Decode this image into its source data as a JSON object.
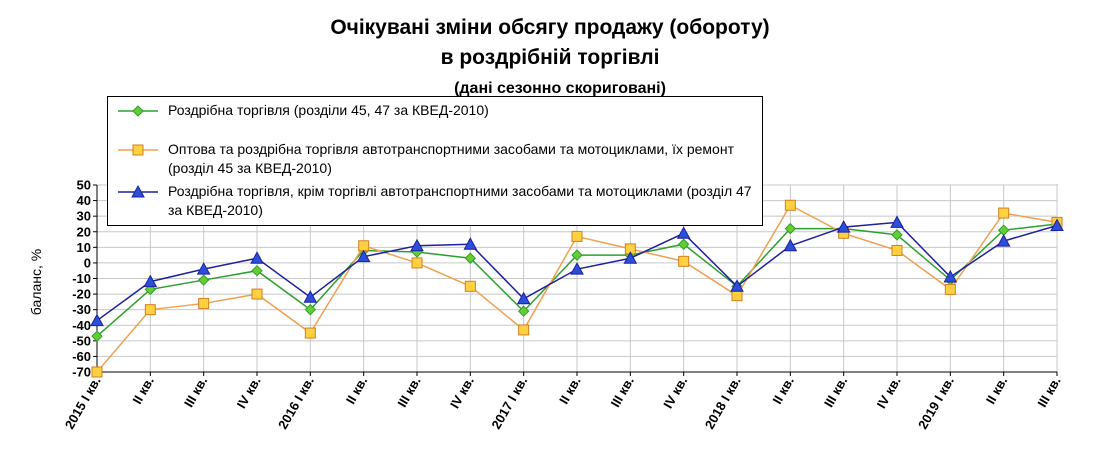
{
  "title_line1": "Очікувані зміни обсягу продажу (обороту)",
  "title_line2": "в роздрібній торгівлі",
  "title_line3": "(дані сезонно скориговані)",
  "chart_data": {
    "type": "line",
    "ylabel": "баланс, %",
    "xlabel": "",
    "ylim": [
      -70,
      50
    ],
    "ytick_step": 10,
    "grid": true,
    "legend_position": "top-left",
    "categories": [
      "2015 I кв.",
      "II кв.",
      "III кв.",
      "IV кв.",
      "2016 I кв.",
      "II кв.",
      "III кв.",
      "IV кв.",
      "2017 I кв.",
      "II кв.",
      "III кв.",
      "IV кв.",
      "2018 I кв.",
      "II кв.",
      "III кв.",
      "IV кв.",
      "2019 I кв.",
      "II кв.",
      "III кв."
    ],
    "series": [
      {
        "name": "Роздрібна торгівля (розділи 45, 47 за КВЕД-2010)",
        "color": "#2ca02c",
        "marker": "diamond",
        "values": [
          -47,
          -17,
          -11,
          -5,
          -30,
          8,
          7,
          3,
          -31,
          5,
          5,
          12,
          -15,
          22,
          22,
          18,
          -11,
          21,
          25
        ]
      },
      {
        "name": "Оптова та роздрібна торгівля автотранспортними засобами та мотоциклами, їх ремонт (розділ 45 за КВЕД-2010)",
        "color": "#f0a050",
        "marker_fill": "#ffd040",
        "marker": "square",
        "values": [
          -70,
          -30,
          -26,
          -20,
          -45,
          11,
          0,
          -15,
          -43,
          17,
          9,
          1,
          -21,
          37,
          19,
          8,
          -17,
          32,
          26
        ]
      },
      {
        "name": "Роздрібна торгівля, крім торгівлі автотранспортними засобами та мотоциклами (розділ 47 за КВЕД-2010)",
        "color": "#1f1f9f",
        "marker": "triangle",
        "values": [
          -37,
          -12,
          -4,
          3,
          -22,
          4,
          11,
          12,
          -23,
          -4,
          3,
          19,
          -15,
          11,
          23,
          26,
          -9,
          14,
          24
        ]
      }
    ]
  }
}
